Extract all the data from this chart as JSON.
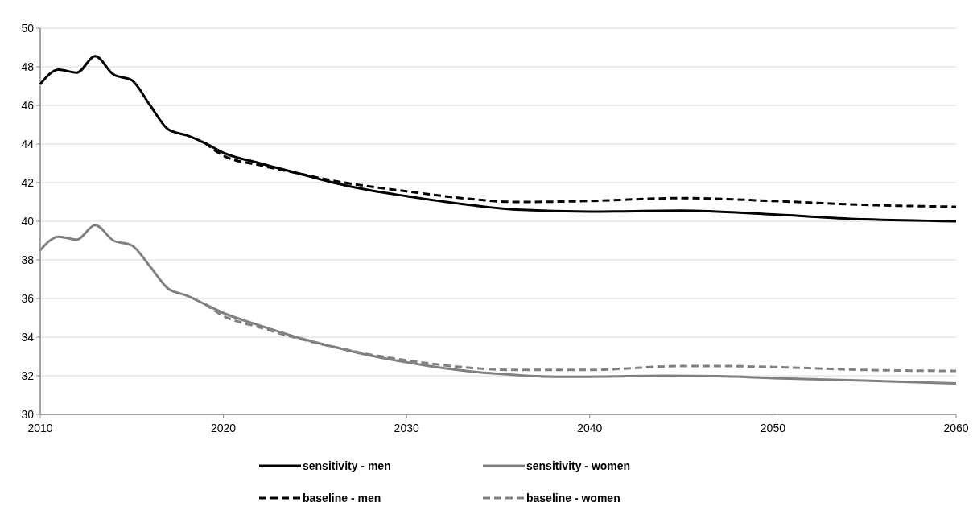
{
  "chart_data": {
    "type": "line",
    "xlim": [
      2010,
      2060
    ],
    "xticks": [
      2010,
      2020,
      2030,
      2040,
      2050,
      2060
    ],
    "ylim": [
      30,
      50
    ],
    "yticks": [
      30,
      32,
      34,
      36,
      38,
      40,
      42,
      44,
      46,
      48,
      50
    ],
    "grid": "y",
    "legend": "bottom",
    "series": [
      {
        "name": "sensitivity - men",
        "color": "#000000",
        "line_style": "solid",
        "x": [
          2010,
          2011,
          2012,
          2013,
          2014,
          2015,
          2016,
          2017,
          2018,
          2019,
          2020,
          2022,
          2024,
          2026,
          2028,
          2030,
          2033,
          2036,
          2040,
          2045,
          2050,
          2055,
          2060
        ],
        "values": [
          47.1,
          47.85,
          47.7,
          48.55,
          47.6,
          47.3,
          46.0,
          44.75,
          44.45,
          44.05,
          43.55,
          43.0,
          42.5,
          42.0,
          41.6,
          41.3,
          40.9,
          40.6,
          40.5,
          40.55,
          40.35,
          40.1,
          40.0
        ]
      },
      {
        "name": "sensitivity - women",
        "color": "#808080",
        "line_style": "solid",
        "x": [
          2010,
          2011,
          2012,
          2013,
          2014,
          2015,
          2016,
          2017,
          2018,
          2019,
          2020,
          2022,
          2024,
          2026,
          2028,
          2030,
          2032,
          2035,
          2038,
          2040,
          2044,
          2047,
          2050,
          2055,
          2060
        ],
        "values": [
          38.5,
          39.2,
          39.05,
          39.8,
          39.0,
          38.75,
          37.65,
          36.5,
          36.15,
          35.7,
          35.25,
          34.6,
          34.0,
          33.5,
          33.05,
          32.7,
          32.4,
          32.1,
          31.95,
          31.95,
          32.0,
          31.98,
          31.88,
          31.75,
          31.6
        ]
      },
      {
        "name": "baseline - men",
        "color": "#000000",
        "line_style": "dashed",
        "x": [
          2019,
          2020,
          2022,
          2024,
          2026,
          2028,
          2030,
          2033,
          2036,
          2040,
          2045,
          2050,
          2055,
          2060
        ],
        "values": [
          44.05,
          43.4,
          42.9,
          42.5,
          42.1,
          41.8,
          41.55,
          41.2,
          41.0,
          41.05,
          41.2,
          41.05,
          40.85,
          40.75
        ]
      },
      {
        "name": "baseline - women",
        "color": "#808080",
        "line_style": "dashed",
        "x": [
          2019,
          2020,
          2022,
          2024,
          2026,
          2028,
          2030,
          2033,
          2036,
          2040,
          2045,
          2047,
          2050,
          2055,
          2060
        ],
        "values": [
          35.7,
          35.1,
          34.5,
          33.95,
          33.5,
          33.1,
          32.8,
          32.45,
          32.3,
          32.3,
          32.5,
          32.5,
          32.45,
          32.3,
          32.25
        ]
      }
    ]
  }
}
